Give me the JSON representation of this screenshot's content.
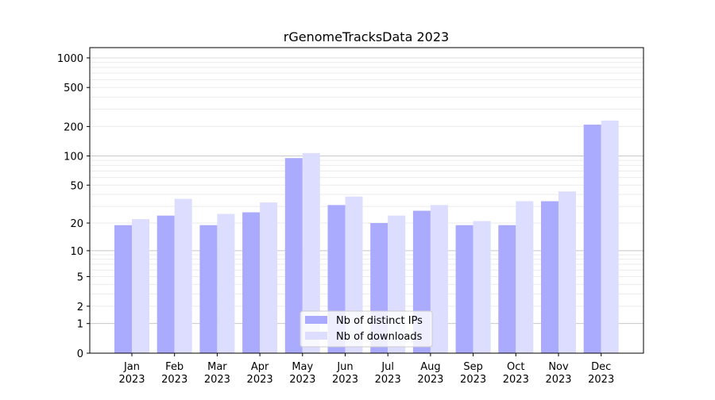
{
  "chart_data": {
    "type": "bar",
    "title": "rGenomeTracksData 2023",
    "xlabel": "",
    "ylabel": "",
    "yscale": "log(1+y)",
    "ylim": [
      0,
      1000
    ],
    "yticks": [
      0,
      1,
      2,
      5,
      10,
      20,
      50,
      100,
      200,
      500,
      1000
    ],
    "grid": true,
    "legend_position": "bottom-center",
    "categories": [
      "Jan\n2023",
      "Feb\n2023",
      "Mar\n2023",
      "Apr\n2023",
      "May\n2023",
      "Jun\n2023",
      "Jul\n2023",
      "Aug\n2023",
      "Sep\n2023",
      "Oct\n2023",
      "Nov\n2023",
      "Dec\n2023"
    ],
    "series": [
      {
        "name": "Nb of distinct IPs",
        "color": "#aaaaff",
        "values": [
          19,
          24,
          19,
          26,
          95,
          31,
          20,
          27,
          19,
          19,
          34,
          209
        ]
      },
      {
        "name": "Nb of downloads",
        "color": "#ddddff",
        "values": [
          22,
          36,
          25,
          33,
          107,
          38,
          24,
          31,
          21,
          34,
          43,
          230
        ]
      }
    ]
  }
}
